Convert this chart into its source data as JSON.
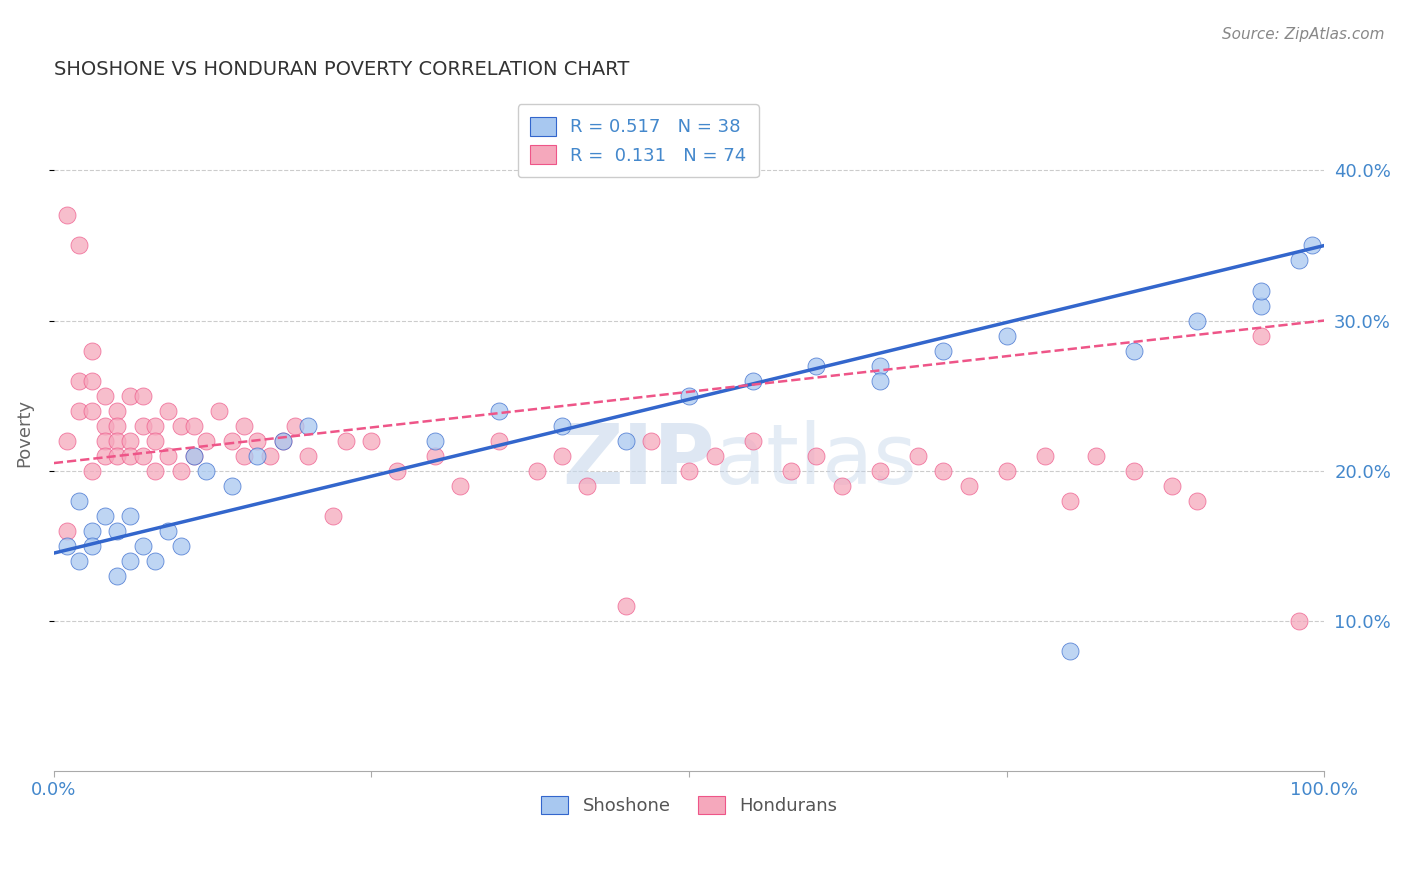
{
  "title": "SHOSHONE VS HONDURAN POVERTY CORRELATION CHART",
  "source": "Source: ZipAtlas.com",
  "ylabel": "Poverty",
  "xlim": [
    0,
    100
  ],
  "ylim": [
    0,
    45
  ],
  "yticks": [
    10,
    20,
    30,
    40
  ],
  "xticks": [
    0,
    25,
    50,
    75,
    100
  ],
  "xtick_labels": [
    "0.0%",
    "",
    "",
    "",
    "100.0%"
  ],
  "ytick_labels": [
    "10.0%",
    "20.0%",
    "30.0%",
    "40.0%"
  ],
  "shoshone_R": 0.517,
  "shoshone_N": 38,
  "honduran_R": 0.131,
  "honduran_N": 74,
  "shoshone_color": "#A8C8F0",
  "honduran_color": "#F5A8BC",
  "shoshone_line_color": "#3366CC",
  "honduran_line_color": "#EE5588",
  "background_color": "#FFFFFF",
  "grid_color": "#CCCCCC",
  "shoshone_x": [
    1,
    2,
    2,
    3,
    3,
    4,
    5,
    5,
    6,
    6,
    7,
    8,
    9,
    10,
    11,
    12,
    14,
    16,
    18,
    20,
    30,
    35,
    40,
    45,
    50,
    55,
    60,
    65,
    65,
    70,
    75,
    80,
    85,
    90,
    95,
    95,
    98,
    99
  ],
  "shoshone_y": [
    15,
    14,
    18,
    16,
    15,
    17,
    13,
    16,
    14,
    17,
    15,
    14,
    16,
    15,
    21,
    20,
    19,
    21,
    22,
    23,
    22,
    24,
    23,
    22,
    25,
    26,
    27,
    27,
    26,
    28,
    29,
    8,
    28,
    30,
    31,
    32,
    34,
    35
  ],
  "honduran_x": [
    1,
    1,
    1,
    2,
    2,
    2,
    3,
    3,
    3,
    3,
    4,
    4,
    4,
    4,
    5,
    5,
    5,
    5,
    6,
    6,
    6,
    7,
    7,
    7,
    8,
    8,
    8,
    9,
    9,
    10,
    10,
    11,
    11,
    12,
    13,
    14,
    15,
    15,
    16,
    17,
    18,
    19,
    20,
    22,
    23,
    25,
    27,
    30,
    32,
    35,
    38,
    40,
    42,
    45,
    47,
    50,
    52,
    55,
    58,
    60,
    62,
    65,
    68,
    70,
    72,
    75,
    78,
    80,
    82,
    85,
    88,
    90,
    95,
    98
  ],
  "honduran_y": [
    37,
    22,
    16,
    35,
    26,
    24,
    28,
    26,
    24,
    20,
    25,
    23,
    22,
    21,
    24,
    23,
    22,
    21,
    25,
    22,
    21,
    25,
    23,
    21,
    23,
    22,
    20,
    24,
    21,
    23,
    20,
    23,
    21,
    22,
    24,
    22,
    23,
    21,
    22,
    21,
    22,
    23,
    21,
    17,
    22,
    22,
    20,
    21,
    19,
    22,
    20,
    21,
    19,
    11,
    22,
    20,
    21,
    22,
    20,
    21,
    19,
    20,
    21,
    20,
    19,
    20,
    21,
    18,
    21,
    20,
    19,
    18,
    29,
    10
  ],
  "shoshone_line_start_y": 14.5,
  "shoshone_line_end_y": 35.0,
  "honduran_line_start_y": 20.5,
  "honduran_line_end_y": 30.0
}
